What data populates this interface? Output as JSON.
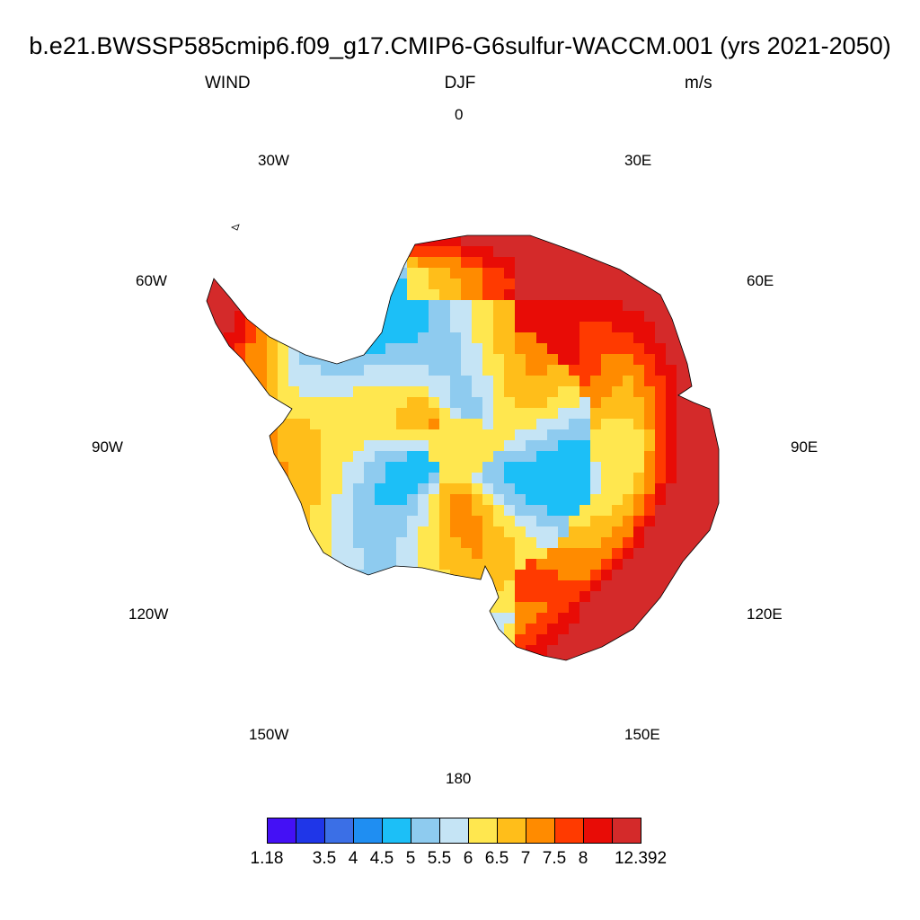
{
  "header": {
    "title": "b.e21.BWSSP585cmip6.f09_g17.CMIP6-G6sulfur-WACCM.001 (yrs 2021-2050)",
    "left": "WIND",
    "center": "DJF",
    "right": "m/s"
  },
  "longitude_labels": {
    "lon_0": "0",
    "lon_30e": "30E",
    "lon_60e": "60E",
    "lon_90e": "90E",
    "lon_120e": "120E",
    "lon_150e": "150E",
    "lon_180": "180",
    "lon_150w": "150W",
    "lon_120w": "120W",
    "lon_90w": "90W",
    "lon_60w": "60W",
    "lon_30w": "30W"
  },
  "colorbar": {
    "colors": [
      "#4410f5",
      "#1f36e8",
      "#3b6fe6",
      "#1f8ef2",
      "#1cbff7",
      "#8ecbef",
      "#c5e4f5",
      "#ffe74f",
      "#ffbe1a",
      "#ff8b00",
      "#ff3a00",
      "#e80c06",
      "#d42a2a"
    ],
    "labels": [
      "1.18",
      "3.5",
      "4",
      "4.5",
      "5",
      "5.5",
      "6",
      "6.5",
      "7",
      "7.5",
      "8",
      "12.392"
    ]
  },
  "map": {
    "projection": "south polar stereographic",
    "variable": "WIND",
    "season": "DJF",
    "units": "m/s",
    "value_range": [
      1.18,
      12.392
    ]
  }
}
